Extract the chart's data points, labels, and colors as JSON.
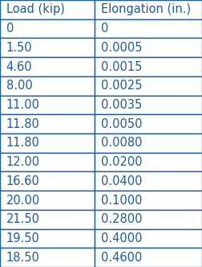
{
  "headers": [
    "Load (kip)",
    "Elongation (in.)"
  ],
  "rows": [
    [
      "0",
      "0"
    ],
    [
      "1.50",
      "0.0005"
    ],
    [
      "4.60",
      "0.0015"
    ],
    [
      "8.00",
      "0.0025"
    ],
    [
      "11.00",
      "0.0035"
    ],
    [
      "11.80",
      "0.0050"
    ],
    [
      "11.80",
      "0.0080"
    ],
    [
      "12.00",
      "0.0200"
    ],
    [
      "16.60",
      "0.0400"
    ],
    [
      "20.00",
      "0.1000"
    ],
    [
      "21.50",
      "0.2800"
    ],
    [
      "19.50",
      "0.4000"
    ],
    [
      "18.50",
      "0.4600"
    ]
  ],
  "text_color": "#1F5C99",
  "border_color": "#1F5C99",
  "background_color": "#ffffff",
  "fontsize": 10.5,
  "col_split": 0.47,
  "border_lw": 1.0
}
